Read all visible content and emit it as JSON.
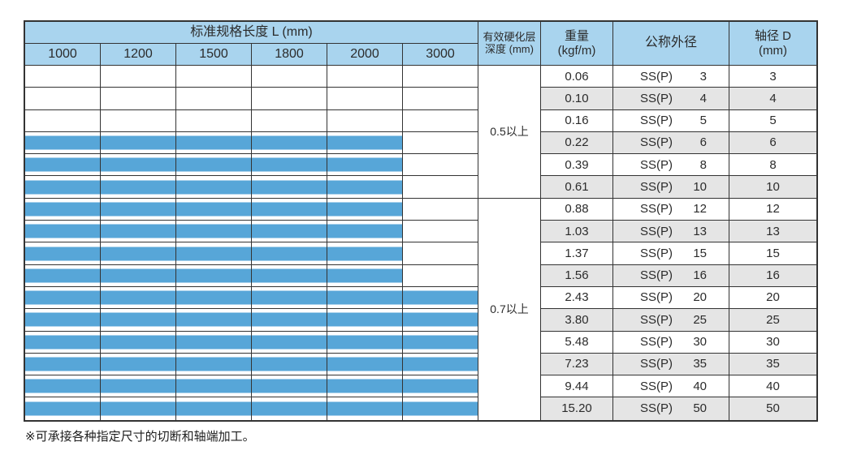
{
  "page": {
    "footnote": "※可承接各种指定尺寸的切断和轴端加工。"
  },
  "table": {
    "header": {
      "length_group": "标准规格长度 L (mm)",
      "length_columns": [
        "1000",
        "1200",
        "1500",
        "1800",
        "2000",
        "3000"
      ],
      "depth_line1": "有效硬化层",
      "depth_line2": "深度 (mm)",
      "weight_line1": "重量",
      "weight_line2": "(kgf/m)",
      "nominal_od": "公称外径",
      "shaft_dia_line1": "轴径 D",
      "shaft_dia_line2": "(mm)"
    },
    "depth_groups": [
      {
        "label": "0.5以上",
        "row_span": 6
      },
      {
        "label": "0.7以上",
        "row_span": 10
      }
    ],
    "rows": [
      {
        "weight": "0.06",
        "series": "SS(P)",
        "size": "3",
        "d": "3",
        "bar_cols": 0
      },
      {
        "weight": "0.10",
        "series": "SS(P)",
        "size": "4",
        "d": "4",
        "bar_cols": 0
      },
      {
        "weight": "0.16",
        "series": "SS(P)",
        "size": "5",
        "d": "5",
        "bar_cols": 0
      },
      {
        "weight": "0.22",
        "series": "SS(P)",
        "size": "6",
        "d": "6",
        "bar_cols": 5
      },
      {
        "weight": "0.39",
        "series": "SS(P)",
        "size": "8",
        "d": "8",
        "bar_cols": 5
      },
      {
        "weight": "0.61",
        "series": "SS(P)",
        "size": "10",
        "d": "10",
        "bar_cols": 5
      },
      {
        "weight": "0.88",
        "series": "SS(P)",
        "size": "12",
        "d": "12",
        "bar_cols": 5
      },
      {
        "weight": "1.03",
        "series": "SS(P)",
        "size": "13",
        "d": "13",
        "bar_cols": 5
      },
      {
        "weight": "1.37",
        "series": "SS(P)",
        "size": "15",
        "d": "15",
        "bar_cols": 5
      },
      {
        "weight": "1.56",
        "series": "SS(P)",
        "size": "16",
        "d": "16",
        "bar_cols": 5
      },
      {
        "weight": "2.43",
        "series": "SS(P)",
        "size": "20",
        "d": "20",
        "bar_cols": 6
      },
      {
        "weight": "3.80",
        "series": "SS(P)",
        "size": "25",
        "d": "25",
        "bar_cols": 6
      },
      {
        "weight": "5.48",
        "series": "SS(P)",
        "size": "30",
        "d": "30",
        "bar_cols": 6
      },
      {
        "weight": "7.23",
        "series": "SS(P)",
        "size": "35",
        "d": "35",
        "bar_cols": 6
      },
      {
        "weight": "9.44",
        "series": "SS(P)",
        "size": "40",
        "d": "40",
        "bar_cols": 6
      },
      {
        "weight": "15.20",
        "series": "SS(P)",
        "size": "50",
        "d": "50",
        "bar_cols": 6
      }
    ],
    "colors": {
      "header_bg": "#A9D4EE",
      "bar_fill": "#57A6D8",
      "alt_row_bg": "#E5E5E5",
      "border": "#333333"
    }
  }
}
